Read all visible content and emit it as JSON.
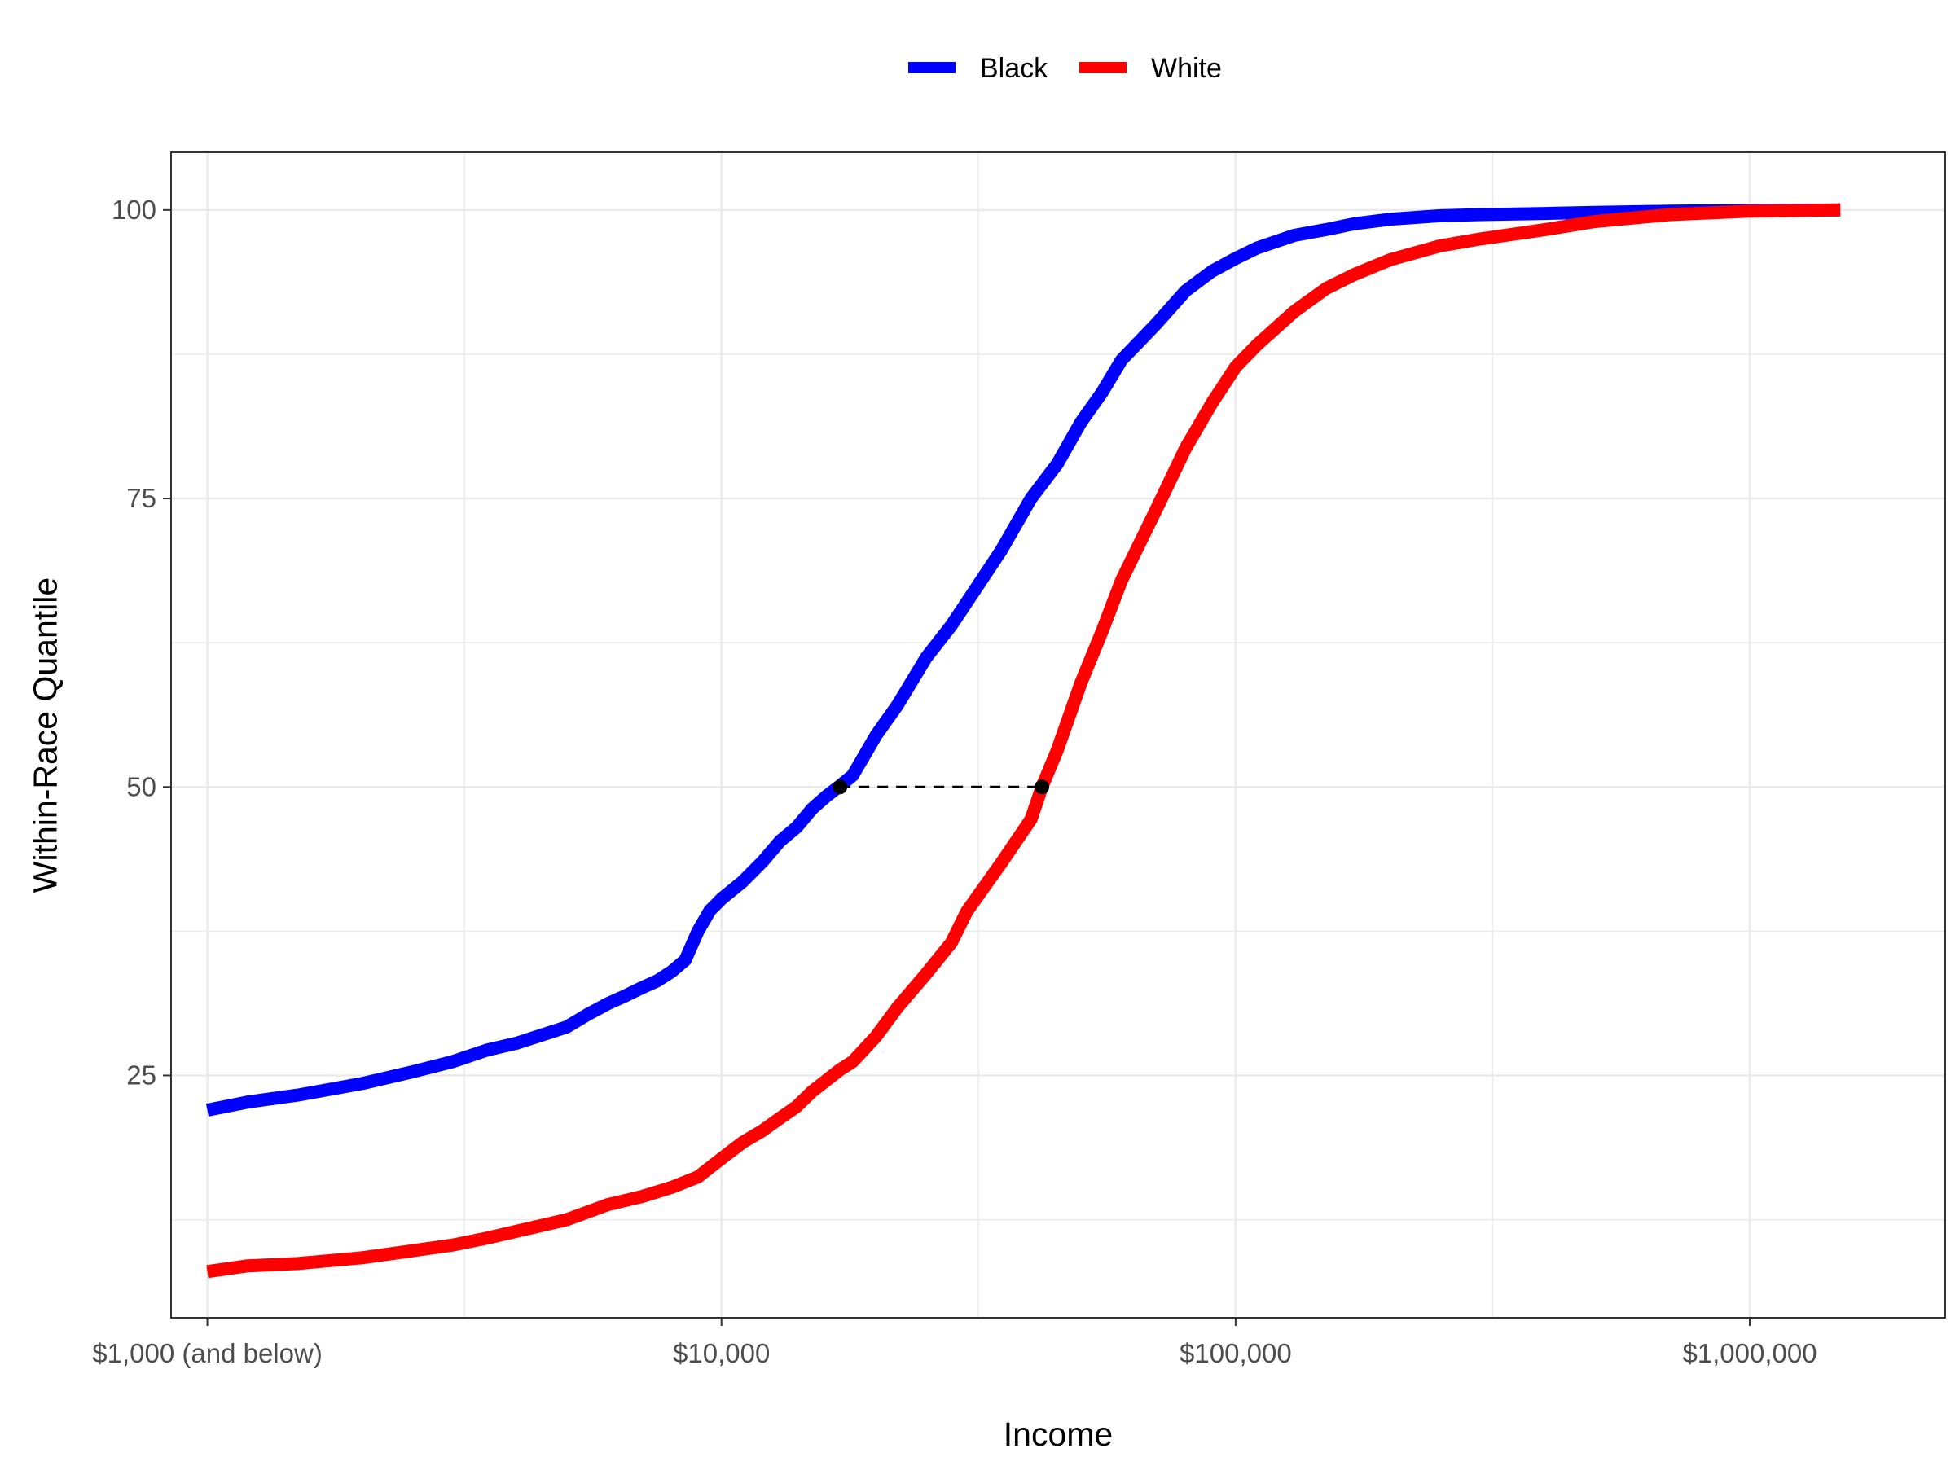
{
  "chart_data": {
    "type": "line",
    "title": "",
    "xlabel": "Income",
    "ylabel": "Within-Race Quantile",
    "x_scale": "log10",
    "xlim": [
      850,
      2400000
    ],
    "ylim": [
      4,
      105
    ],
    "grid": true,
    "legend_position": "top",
    "x_ticks": [
      {
        "value": 1000,
        "label": "$1,000 (and below)"
      },
      {
        "value": 10000,
        "label": "$10,000"
      },
      {
        "value": 100000,
        "label": "$100,000"
      },
      {
        "value": 1000000,
        "label": "$1,000,000"
      }
    ],
    "y_ticks": [
      {
        "value": 25,
        "label": "25"
      },
      {
        "value": 50,
        "label": "50"
      },
      {
        "value": 75,
        "label": "75"
      },
      {
        "value": 100,
        "label": "100"
      }
    ],
    "series": [
      {
        "name": "Black",
        "color": "#0000ff",
        "x": [
          1000,
          1200,
          1500,
          2000,
          2500,
          3000,
          3500,
          4000,
          5000,
          5500,
          6000,
          6500,
          7000,
          7500,
          8000,
          8500,
          9000,
          9500,
          10000,
          11000,
          12000,
          13000,
          14000,
          15000,
          16000,
          17000,
          18000,
          20000,
          22000,
          25000,
          28000,
          30000,
          35000,
          40000,
          45000,
          50000,
          55000,
          60000,
          70000,
          80000,
          90000,
          100000,
          110000,
          130000,
          150000,
          170000,
          200000,
          250000,
          300000,
          400000,
          500000,
          700000,
          1000000,
          1500000
        ],
        "y": [
          22,
          22.7,
          23.3,
          24.3,
          25.3,
          26.2,
          27.2,
          27.8,
          29.2,
          30.3,
          31.2,
          31.9,
          32.6,
          33.2,
          34,
          35,
          37.5,
          39.3,
          40.3,
          41.8,
          43.5,
          45.3,
          46.5,
          48.1,
          49.2,
          50.1,
          51,
          54.5,
          57.1,
          61.2,
          64,
          66,
          70.5,
          75,
          78,
          81.6,
          84.2,
          87,
          90.1,
          93,
          94.7,
          95.8,
          96.7,
          97.8,
          98.3,
          98.8,
          99.2,
          99.5,
          99.6,
          99.7,
          99.8,
          99.9,
          99.95,
          100
        ]
      },
      {
        "name": "White",
        "color": "#ff0000",
        "x": [
          1000,
          1200,
          1500,
          2000,
          2500,
          3000,
          3500,
          4000,
          5000,
          6000,
          7000,
          8000,
          9000,
          10000,
          11000,
          12000,
          13000,
          14000,
          15000,
          17000,
          18000,
          20000,
          22000,
          25000,
          28000,
          30000,
          35000,
          40000,
          42000,
          45000,
          50000,
          55000,
          60000,
          70000,
          80000,
          90000,
          100000,
          110000,
          130000,
          150000,
          170000,
          200000,
          250000,
          300000,
          400000,
          500000,
          700000,
          1000000,
          1500000
        ],
        "y": [
          8,
          8.5,
          8.7,
          9.2,
          9.8,
          10.3,
          10.9,
          11.5,
          12.5,
          13.8,
          14.5,
          15.3,
          16.2,
          17.8,
          19.2,
          20.2,
          21.3,
          22.3,
          23.6,
          25.5,
          26.2,
          28.4,
          30.9,
          33.8,
          36.5,
          39.2,
          43.4,
          47.2,
          50,
          53.2,
          59,
          63.5,
          67.9,
          74,
          79.4,
          83.3,
          86.4,
          88.3,
          91.2,
          93.2,
          94.4,
          95.7,
          96.9,
          97.5,
          98.3,
          99,
          99.6,
          99.9,
          100
        ]
      }
    ],
    "annotations": [
      {
        "type": "dashed-segment",
        "x1": 17000,
        "x2": 42000,
        "y": 50,
        "color": "#000000"
      },
      {
        "type": "point",
        "x": 17000,
        "y": 50,
        "color": "#000000"
      },
      {
        "type": "point",
        "x": 42000,
        "y": 50,
        "color": "#000000"
      }
    ]
  }
}
